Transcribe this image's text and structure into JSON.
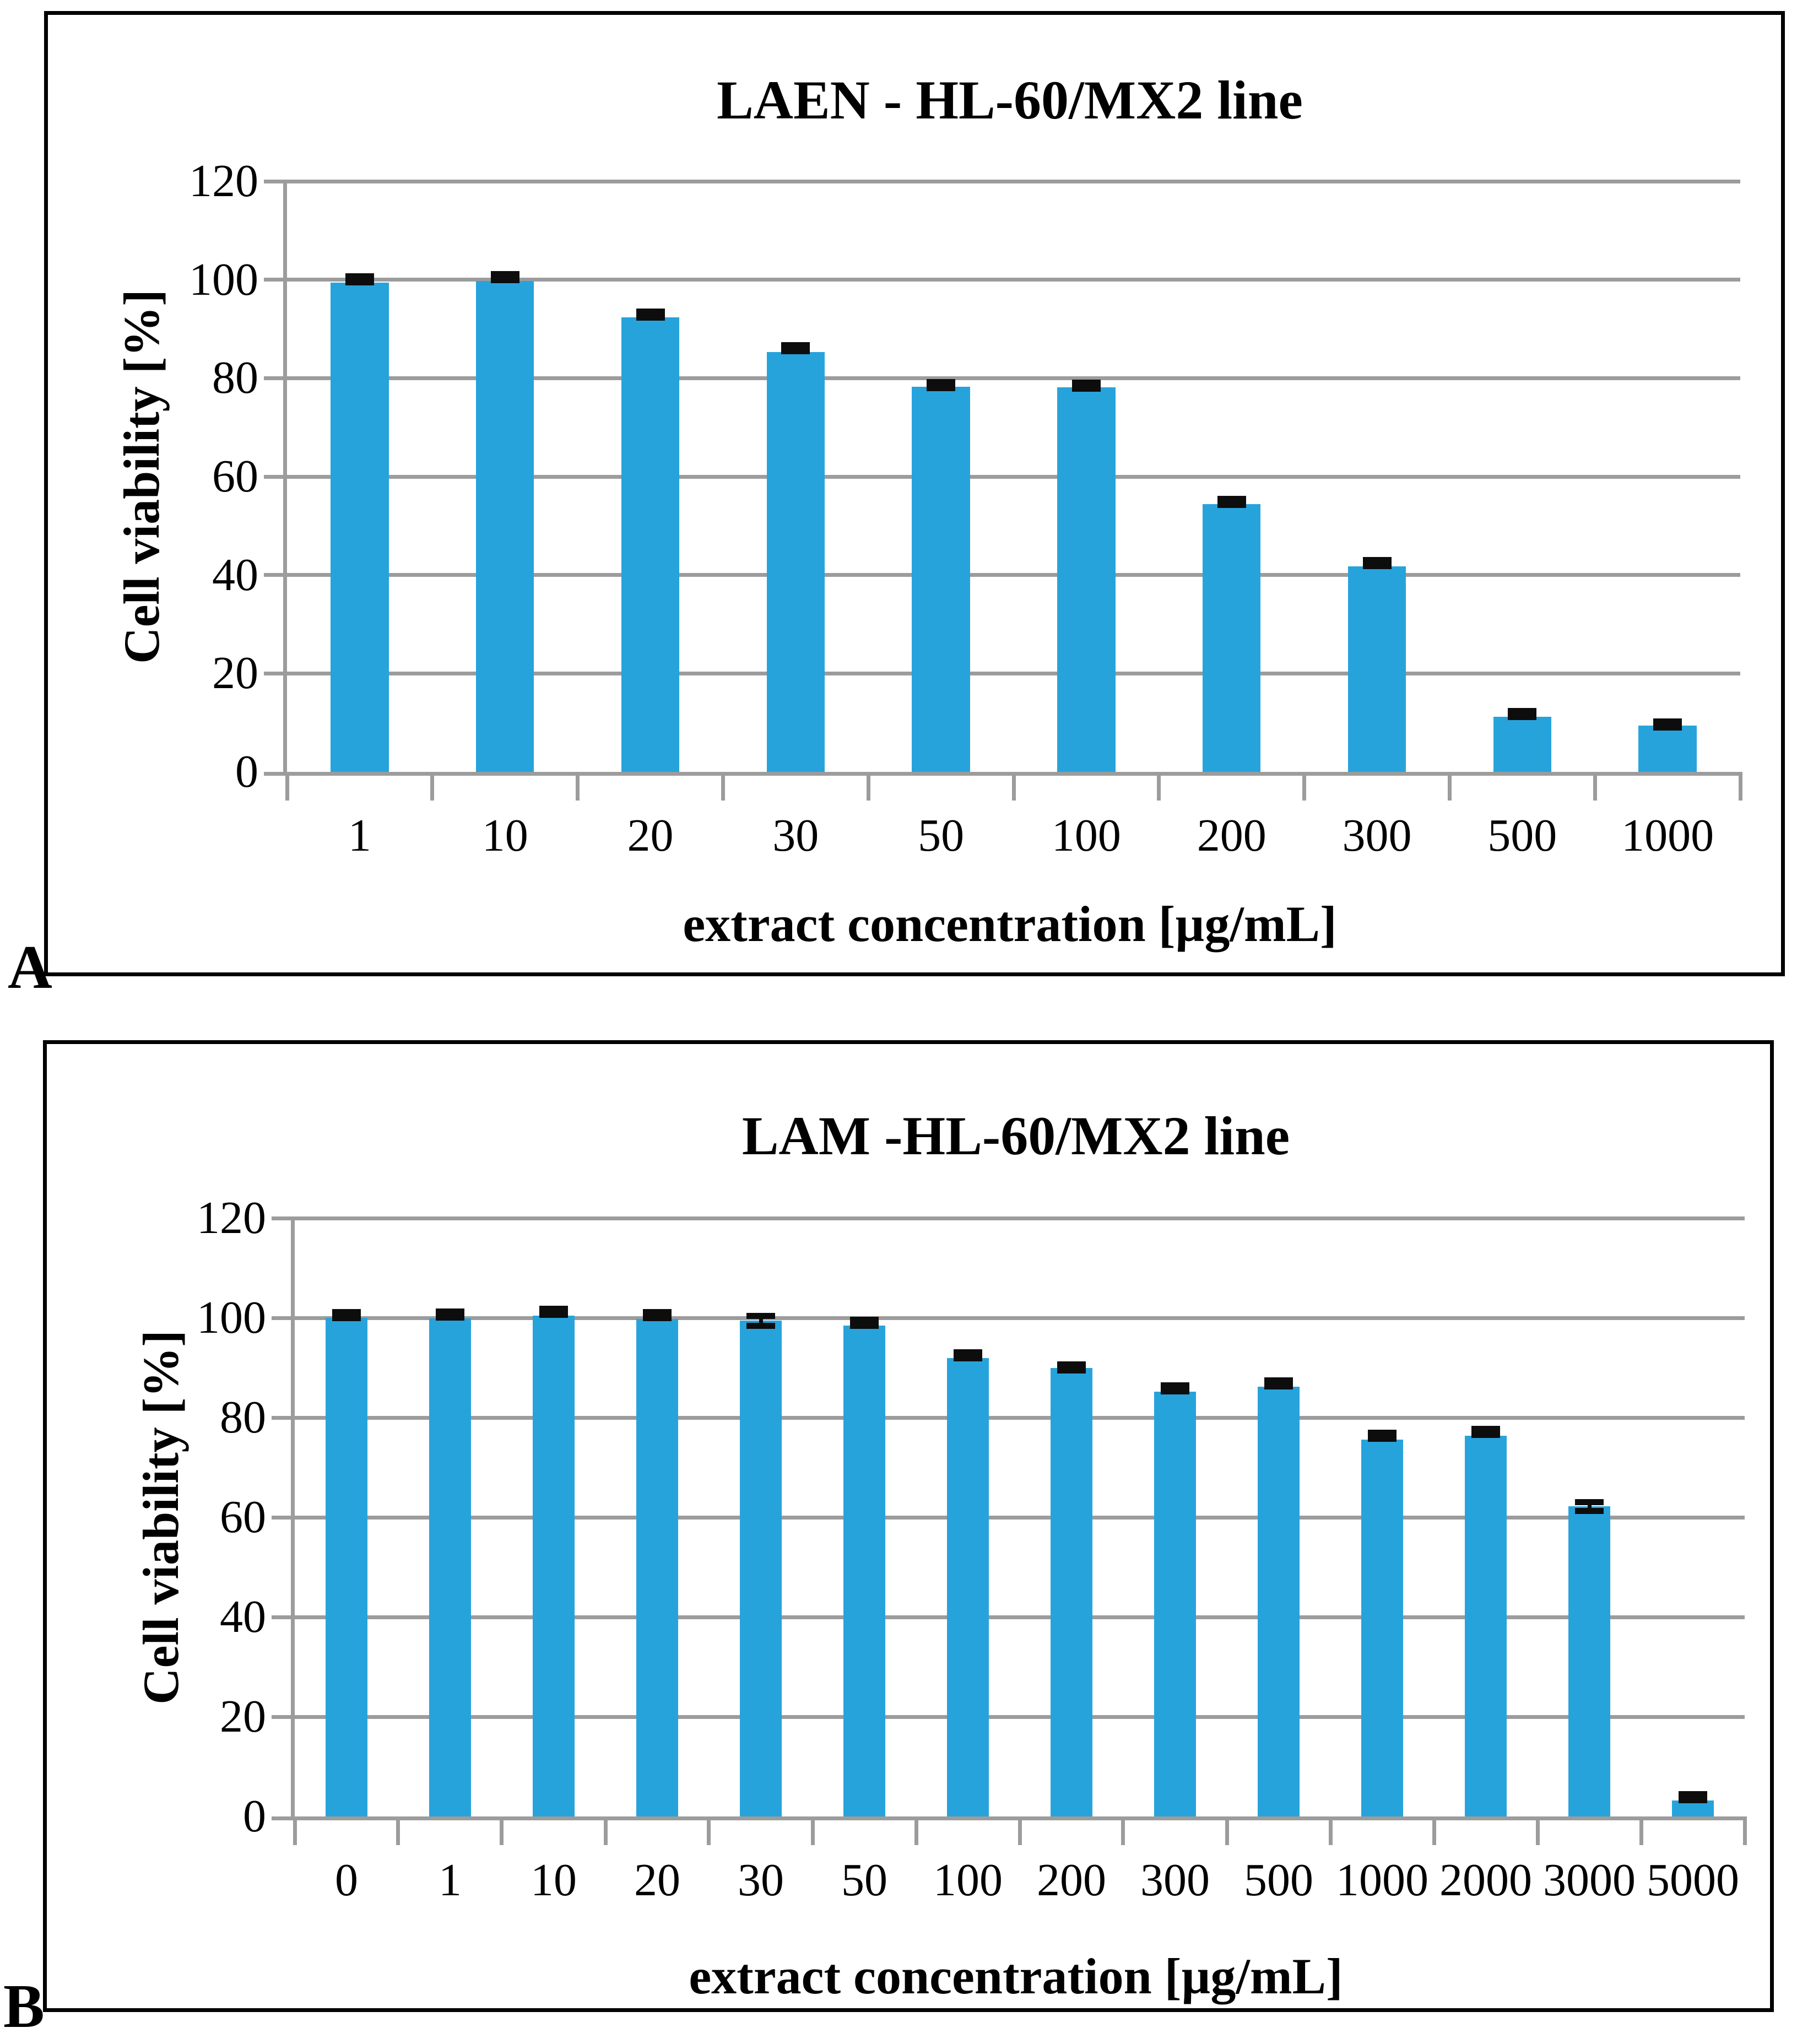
{
  "figure": {
    "panel_a_label": "A",
    "panel_b_label": "B"
  },
  "style": {
    "bar_color": "#27a3dc",
    "grid_color": "#9c9c9c",
    "error_color": "#0d0d0d",
    "panel_border_color": "#000000"
  },
  "chart_data": [
    {
      "panel": "A",
      "type": "bar",
      "title": "LAEN - HL-60/MX2 line",
      "xlabel": "extract concentration [µg/mL]",
      "ylabel": "Cell viability [%]",
      "ylim": [
        0,
        120
      ],
      "yticks": [
        0,
        20,
        40,
        60,
        80,
        100,
        120
      ],
      "grid": true,
      "legend": false,
      "categories": [
        "1",
        "10",
        "20",
        "30",
        "50",
        "100",
        "200",
        "300",
        "500",
        "1000"
      ],
      "values": [
        99.4,
        99.7,
        92.3,
        85.3,
        78.3,
        78.1,
        54.4,
        41.8,
        11.2,
        9.4
      ],
      "errors": [
        0.5,
        0.4,
        0.6,
        0.5,
        0.9,
        0.9,
        0.8,
        0.6,
        0.7,
        1.0
      ]
    },
    {
      "panel": "B",
      "type": "bar",
      "title": "LAM -HL-60/MX2 line",
      "xlabel": "extract concentration [µg/mL]",
      "ylabel": "Cell viability [%]",
      "ylim": [
        0,
        120
      ],
      "yticks": [
        0,
        20,
        40,
        60,
        80,
        100,
        120
      ],
      "grid": true,
      "legend": false,
      "categories": [
        "0",
        "1",
        "10",
        "20",
        "30",
        "50",
        "100",
        "200",
        "300",
        "500",
        "1000",
        "2000",
        "3000",
        "5000"
      ],
      "values": [
        100.0,
        99.9,
        100.4,
        99.8,
        99.4,
        98.4,
        91.9,
        90.0,
        85.2,
        86.2,
        75.6,
        76.4,
        62.2,
        3.2
      ],
      "errors": [
        0.7,
        0.4,
        0.4,
        0.5,
        1.6,
        0.6,
        0.6,
        1.2,
        0.6,
        0.6,
        0.5,
        0.5,
        1.5,
        0.5
      ]
    }
  ]
}
